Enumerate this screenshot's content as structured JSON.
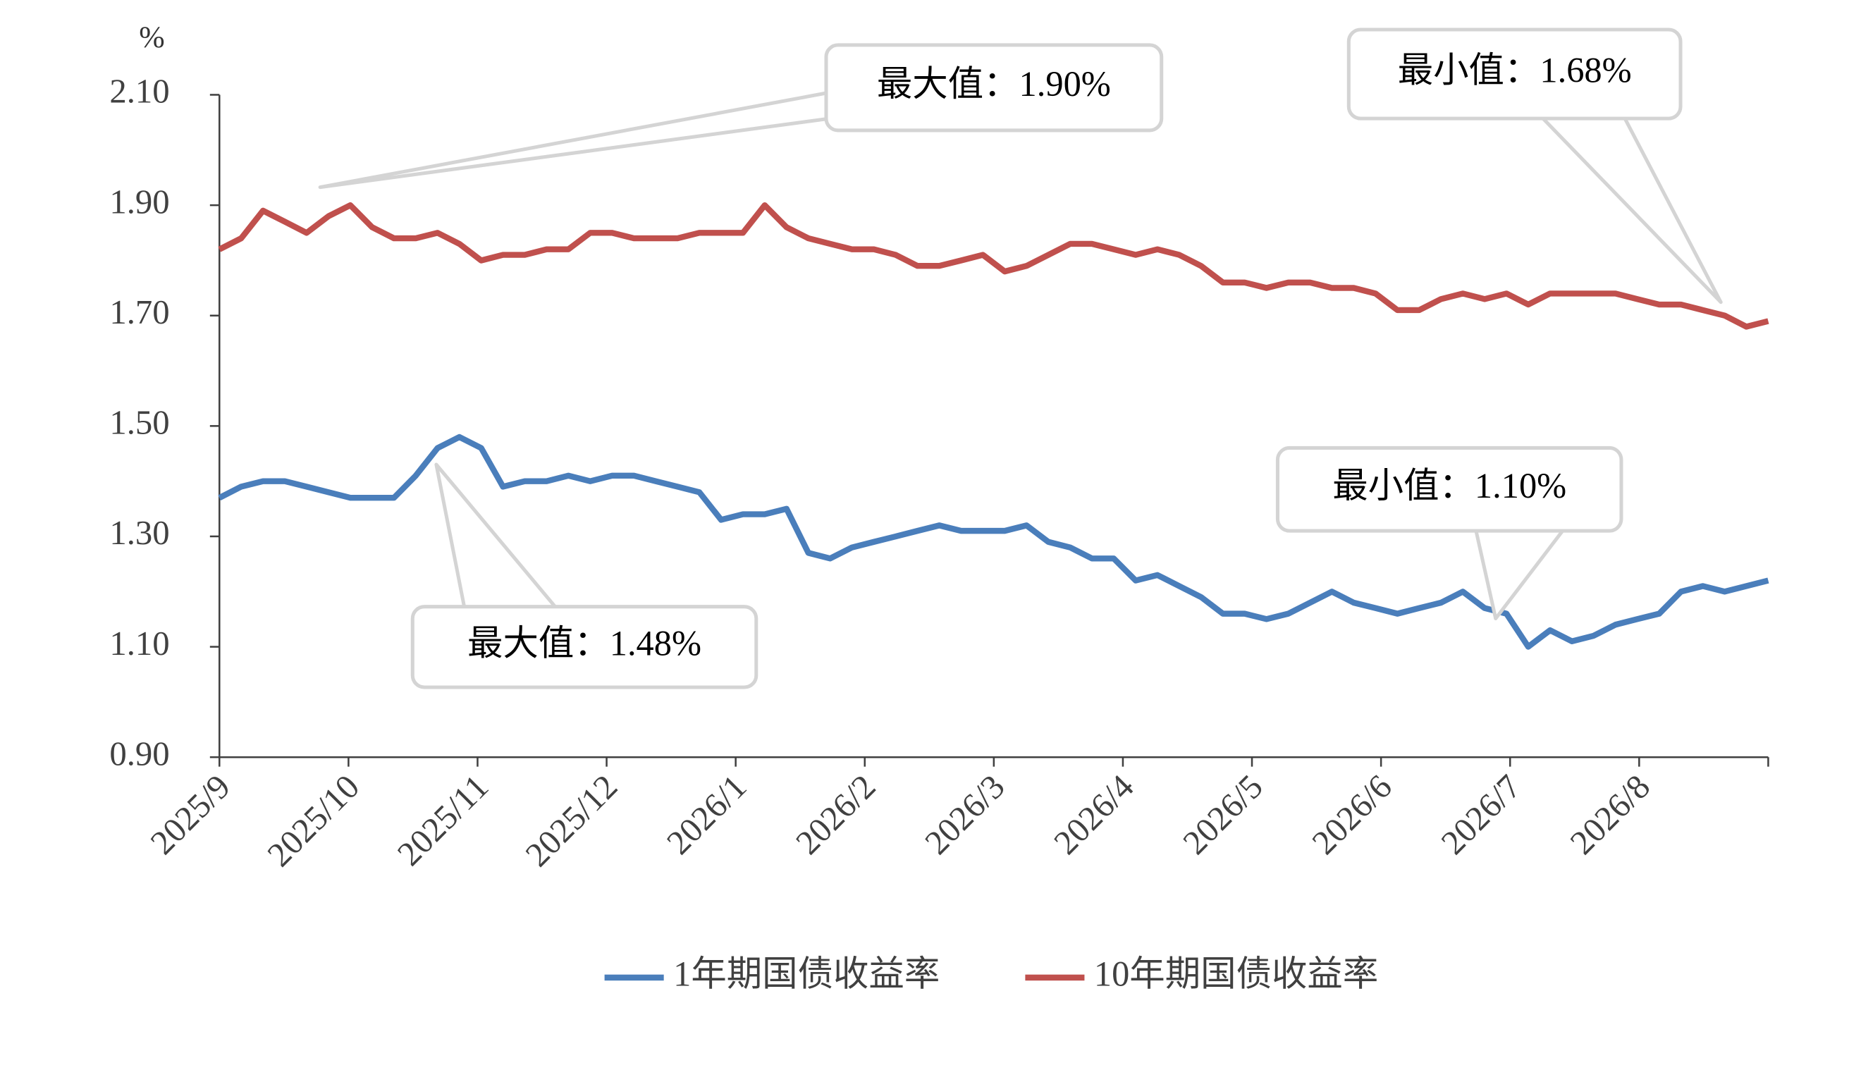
{
  "chart_data": {
    "type": "line",
    "y_label": "%",
    "categories": [
      "2025/9",
      null,
      null,
      null,
      null,
      null,
      "2025/10",
      null,
      null,
      null,
      null,
      null,
      "2025/11",
      null,
      null,
      null,
      null,
      null,
      "2025/12",
      null,
      null,
      null,
      null,
      null,
      "2026/1",
      null,
      null,
      null,
      null,
      null,
      "2026/2",
      null,
      null,
      null,
      null,
      null,
      "2026/3",
      null,
      null,
      null,
      null,
      null,
      "2026/4",
      null,
      null,
      null,
      null,
      null,
      "2026/5",
      null,
      null,
      null,
      null,
      null,
      "2026/6",
      null,
      null,
      null,
      null,
      null,
      "2026/7",
      null,
      null,
      null,
      null,
      null,
      "2026/8",
      null,
      null,
      null,
      null,
      null
    ],
    "series": [
      {
        "name": "1年期国债收益率",
        "color": "#4a7ebb",
        "values": [
          1.37,
          1.39,
          1.4,
          1.4,
          1.39,
          1.38,
          1.37,
          1.37,
          1.37,
          1.41,
          1.46,
          1.48,
          1.46,
          1.39,
          1.4,
          1.4,
          1.41,
          1.4,
          1.41,
          1.41,
          1.4,
          1.39,
          1.38,
          1.33,
          1.34,
          1.34,
          1.35,
          1.27,
          1.26,
          1.28,
          1.29,
          1.3,
          1.31,
          1.32,
          1.31,
          1.31,
          1.31,
          1.32,
          1.29,
          1.28,
          1.26,
          1.26,
          1.22,
          1.23,
          1.21,
          1.19,
          1.16,
          1.16,
          1.15,
          1.16,
          1.18,
          1.2,
          1.18,
          1.17,
          1.16,
          1.17,
          1.18,
          1.2,
          1.17,
          1.16,
          1.1,
          1.13,
          1.11,
          1.12,
          1.14,
          1.15,
          1.16,
          1.2,
          1.21,
          1.2,
          1.21,
          1.22
        ]
      },
      {
        "name": "10年期国债收益率",
        "color": "#c0504d",
        "values": [
          1.82,
          1.84,
          1.89,
          1.87,
          1.85,
          1.88,
          1.9,
          1.86,
          1.84,
          1.84,
          1.85,
          1.83,
          1.8,
          1.81,
          1.81,
          1.82,
          1.82,
          1.85,
          1.85,
          1.84,
          1.84,
          1.84,
          1.85,
          1.85,
          1.85,
          1.9,
          1.86,
          1.84,
          1.83,
          1.82,
          1.82,
          1.81,
          1.79,
          1.79,
          1.8,
          1.81,
          1.78,
          1.79,
          1.81,
          1.83,
          1.83,
          1.82,
          1.81,
          1.82,
          1.81,
          1.79,
          1.76,
          1.76,
          1.75,
          1.76,
          1.76,
          1.75,
          1.75,
          1.74,
          1.71,
          1.71,
          1.73,
          1.74,
          1.73,
          1.74,
          1.72,
          1.74,
          1.74,
          1.74,
          1.74,
          1.73,
          1.72,
          1.72,
          1.71,
          1.7,
          1.68,
          1.69
        ]
      }
    ],
    "ylim": [
      0.9,
      2.1
    ],
    "yticks": [
      {
        "value": 0.9,
        "label": "0.90"
      },
      {
        "value": 1.1,
        "label": "1.10"
      },
      {
        "value": 1.3,
        "label": "1.30"
      },
      {
        "value": 1.5,
        "label": "1.50"
      },
      {
        "value": 1.7,
        "label": "1.70"
      },
      {
        "value": 1.9,
        "label": "1.90"
      },
      {
        "value": 2.1,
        "label": "2.10"
      }
    ],
    "grid": false,
    "legend": "bottom",
    "annotations": [
      "最大值：1.90%",
      "最小值：1.68%",
      "最小值：1.10%",
      "最大值：1.48%"
    ]
  }
}
